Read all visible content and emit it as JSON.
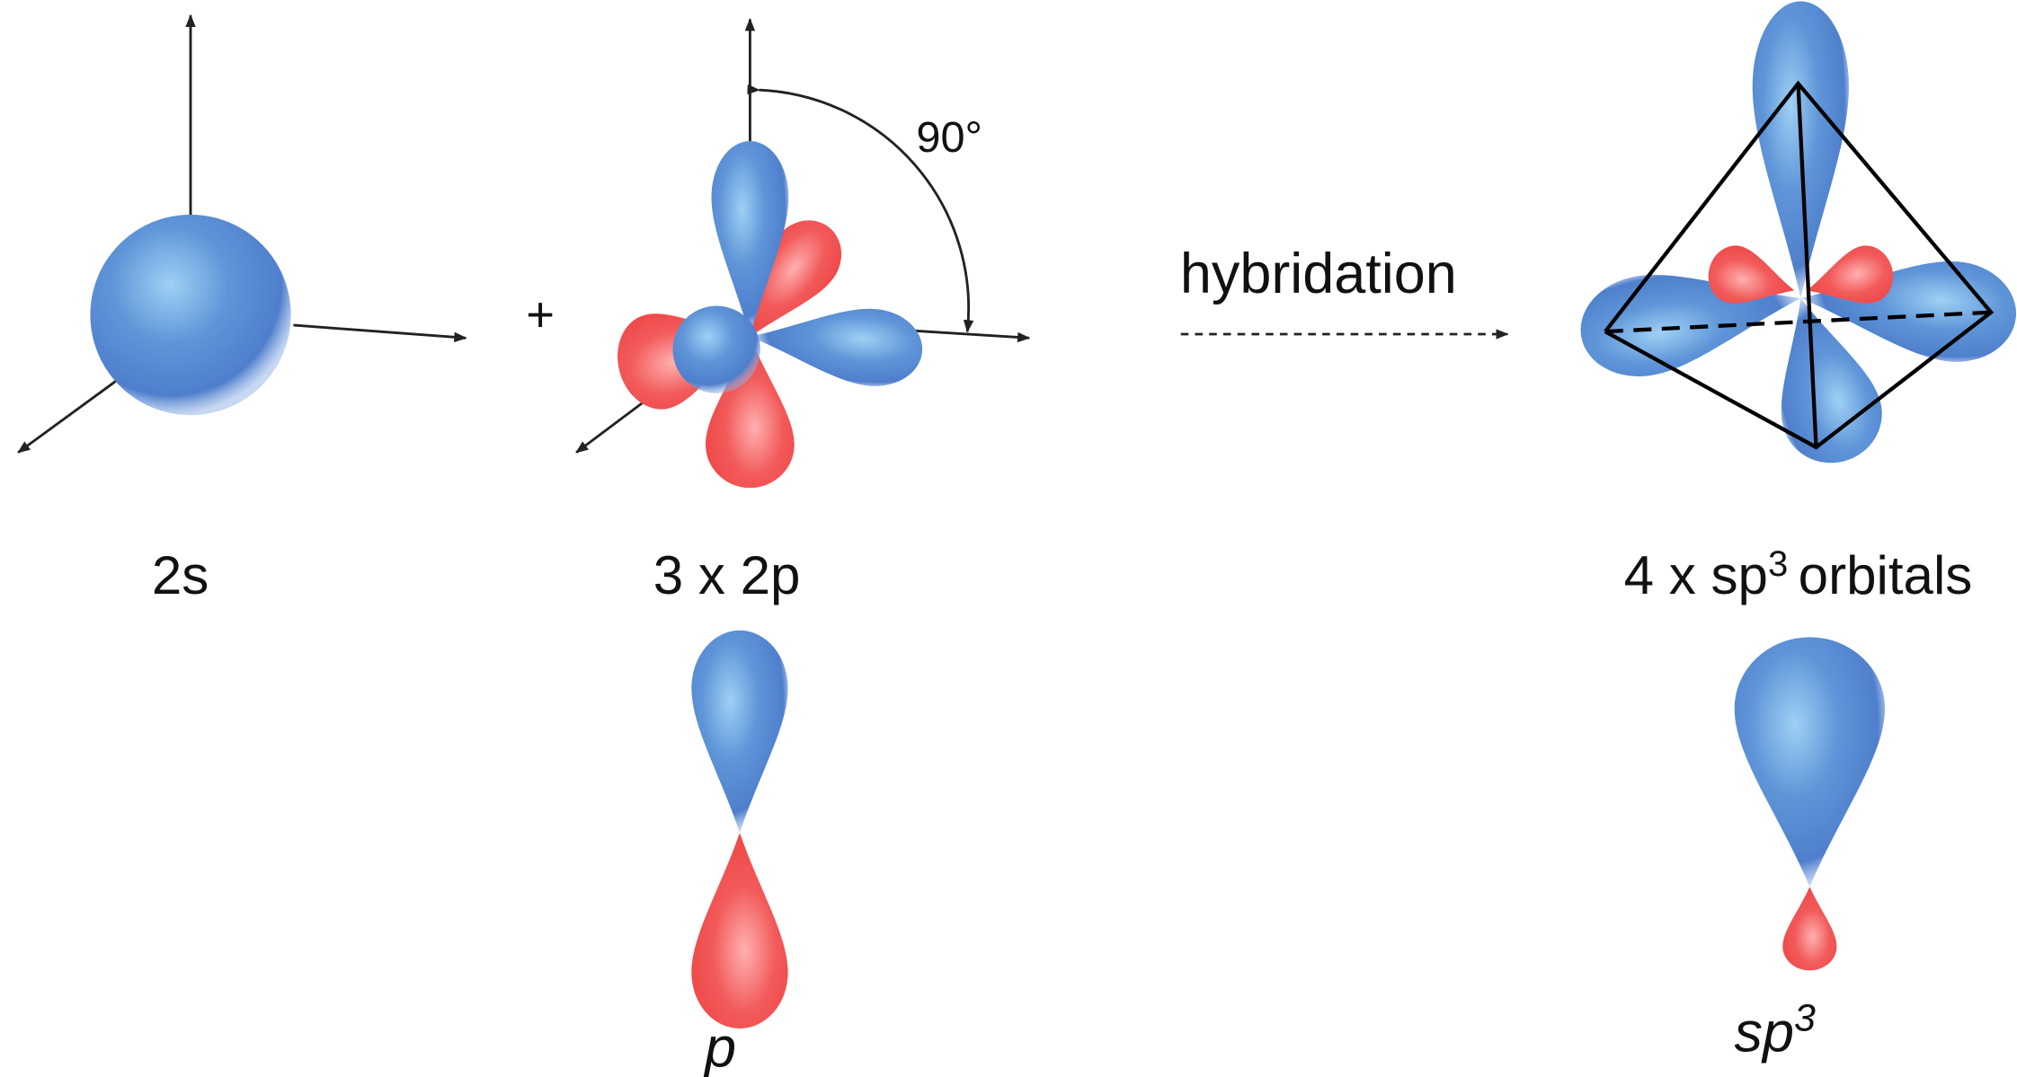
{
  "angle_label": "90°",
  "plus": "+",
  "arrow_label": "hybridation",
  "labels": {
    "s": "2s",
    "p": "3 x 2p",
    "sp3": {
      "prefix": "4 x sp",
      "sup": "3",
      "suffix": "orbitals"
    }
  },
  "single": {
    "p": "p",
    "sp3": {
      "base": "sp",
      "sup": "3"
    }
  }
}
